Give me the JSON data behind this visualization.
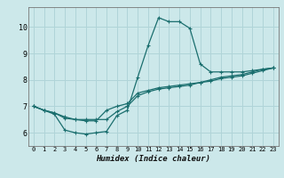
{
  "title": "",
  "xlabel": "Humidex (Indice chaleur)",
  "background_color": "#cce8ea",
  "grid_color": "#b0d4d8",
  "line_color": "#1a6e6e",
  "xlim": [
    -0.5,
    23.5
  ],
  "ylim": [
    5.5,
    10.75
  ],
  "yticks": [
    6,
    7,
    8,
    9,
    10
  ],
  "xticks": [
    0,
    1,
    2,
    3,
    4,
    5,
    6,
    7,
    8,
    9,
    10,
    11,
    12,
    13,
    14,
    15,
    16,
    17,
    18,
    19,
    20,
    21,
    22,
    23
  ],
  "series": [
    {
      "x": [
        0,
        1,
        2,
        3,
        4,
        5,
        6,
        7,
        8,
        9,
        10,
        11,
        12,
        13,
        14,
        15,
        16,
        17,
        18,
        19,
        20,
        21,
        22,
        23
      ],
      "y": [
        7.0,
        6.85,
        6.7,
        6.1,
        6.0,
        5.95,
        6.0,
        6.05,
        6.65,
        6.85,
        8.1,
        9.3,
        10.35,
        10.2,
        10.2,
        9.95,
        8.6,
        8.3,
        8.3,
        8.3,
        8.3,
        8.35,
        8.4,
        8.45
      ]
    },
    {
      "x": [
        0,
        1,
        2,
        3,
        4,
        5,
        6,
        7,
        8,
        9,
        10,
        11,
        12,
        13,
        14,
        15,
        16,
        17,
        18,
        19,
        20,
        21,
        22,
        23
      ],
      "y": [
        7.0,
        6.85,
        6.75,
        6.55,
        6.5,
        6.45,
        6.45,
        6.85,
        7.0,
        7.1,
        7.5,
        7.6,
        7.7,
        7.75,
        7.8,
        7.85,
        7.9,
        8.0,
        8.1,
        8.15,
        8.2,
        8.3,
        8.4,
        8.45
      ]
    },
    {
      "x": [
        0,
        1,
        2,
        3,
        4,
        5,
        6,
        7,
        8,
        9,
        10,
        11,
        12,
        13,
        14,
        15,
        16,
        17,
        18,
        19,
        20,
        21,
        22,
        23
      ],
      "y": [
        7.0,
        6.85,
        6.75,
        6.6,
        6.5,
        6.5,
        6.5,
        6.5,
        6.8,
        7.0,
        7.4,
        7.55,
        7.65,
        7.7,
        7.75,
        7.8,
        7.9,
        7.95,
        8.05,
        8.1,
        8.15,
        8.25,
        8.35,
        8.45
      ]
    }
  ]
}
